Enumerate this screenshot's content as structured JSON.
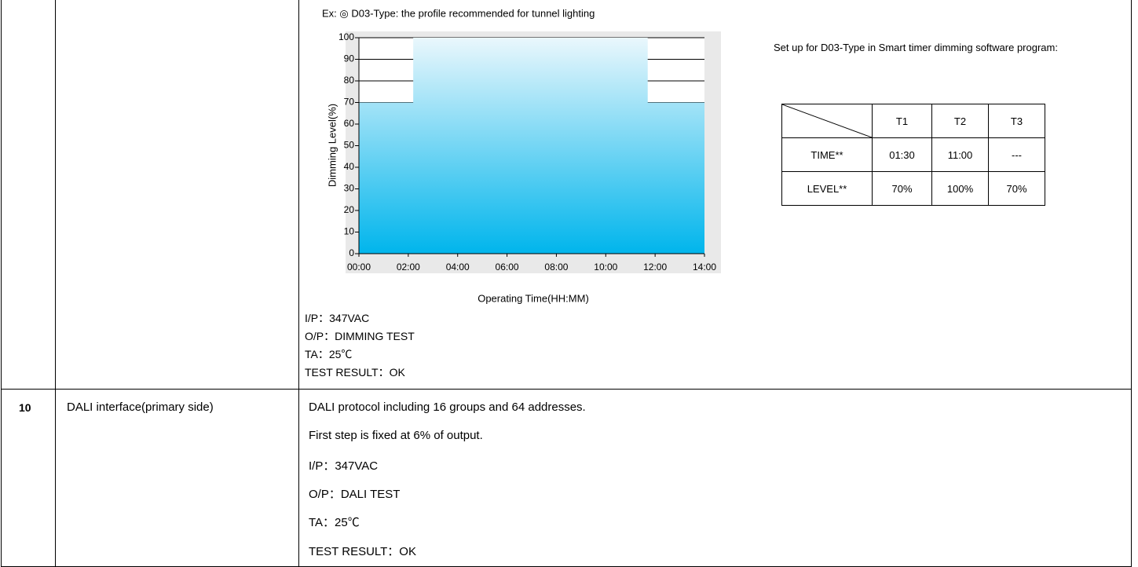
{
  "chart_data": {
    "type": "area",
    "caption": "Ex: ◎ D03-Type: the profile recommended for tunnel lighting",
    "x_label": "Operating Time(HH:MM)",
    "y_label": "Dimming Level(%)",
    "x": [
      0,
      2.2,
      2.2,
      11.7,
      11.7,
      14
    ],
    "values": [
      70,
      70,
      100,
      100,
      70,
      70
    ],
    "xlim": [
      0,
      14
    ],
    "ylim": [
      0,
      100
    ],
    "yticks": [
      0,
      10,
      20,
      30,
      40,
      50,
      60,
      70,
      80,
      90,
      100
    ],
    "xticks": [
      {
        "value": 0,
        "label": "00:00"
      },
      {
        "value": 2,
        "label": "02:00"
      },
      {
        "value": 4,
        "label": "04:00"
      },
      {
        "value": 6,
        "label": "06:00"
      },
      {
        "value": 8,
        "label": "08:00"
      },
      {
        "value": 10,
        "label": "10:00"
      },
      {
        "value": 12,
        "label": "12:00"
      },
      {
        "value": 14,
        "label": "14:00"
      }
    ],
    "color": "#00b5ec",
    "color_top": "#eaf7fc",
    "grid": true
  },
  "row1": {
    "notes": [
      "I/P：347VAC",
      "O/P：DIMMING TEST",
      "TA：25℃",
      "TEST RESULT：OK"
    ],
    "setup_title": "Set up for D03-Type in Smart timer dimming software program:",
    "setup_table": {
      "header": [
        "T1",
        "T2",
        "T3"
      ],
      "rows": [
        [
          "TIME**",
          "01:30",
          "11:00",
          "---"
        ],
        [
          "LEVEL**",
          "70%",
          "100%",
          "70%"
        ]
      ]
    }
  },
  "row2": {
    "number": "10",
    "item": "DALI interface(primary side)",
    "lines": [
      "DALI protocol including 16 groups and 64 addresses.",
      "First step is fixed at 6% of output.",
      "I/P：347VAC",
      "O/P：DALI TEST",
      "TA：25℃",
      "TEST RESULT：OK"
    ]
  }
}
